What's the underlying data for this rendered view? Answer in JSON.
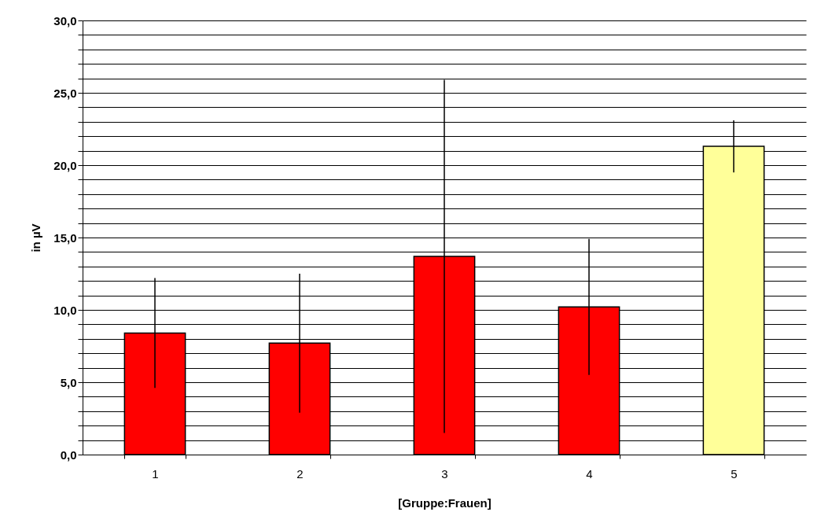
{
  "chart_data": {
    "type": "bar",
    "xlabel": "[Gruppe:Frauen]",
    "ylabel": "in µV",
    "categories": [
      "1",
      "2",
      "3",
      "4",
      "5"
    ],
    "values": [
      8.4,
      7.7,
      13.7,
      10.2,
      21.3
    ],
    "errors": [
      3.8,
      4.8,
      12.2,
      4.7,
      1.8
    ],
    "colors": [
      "#ff0000",
      "#ff0000",
      "#ff0000",
      "#ff0000",
      "#ffff99"
    ],
    "ylim": [
      0,
      30
    ],
    "yticks": [
      {
        "value": 0,
        "label": "0,0"
      },
      {
        "value": 1,
        "label": null
      },
      {
        "value": 2,
        "label": null
      },
      {
        "value": 3,
        "label": null
      },
      {
        "value": 4,
        "label": null
      },
      {
        "value": 5,
        "label": "5,0"
      },
      {
        "value": 6,
        "label": null
      },
      {
        "value": 7,
        "label": null
      },
      {
        "value": 8,
        "label": null
      },
      {
        "value": 9,
        "label": null
      },
      {
        "value": 10,
        "label": "10,0"
      },
      {
        "value": 11,
        "label": null
      },
      {
        "value": 12,
        "label": null
      },
      {
        "value": 13,
        "label": null
      },
      {
        "value": 14,
        "label": null
      },
      {
        "value": 15,
        "label": "15,0"
      },
      {
        "value": 16,
        "label": null
      },
      {
        "value": 17,
        "label": null
      },
      {
        "value": 18,
        "label": null
      },
      {
        "value": 19,
        "label": null
      },
      {
        "value": 20,
        "label": "20,0"
      },
      {
        "value": 21,
        "label": null
      },
      {
        "value": 22,
        "label": null
      },
      {
        "value": 23,
        "label": null
      },
      {
        "value": 24,
        "label": null
      },
      {
        "value": 25,
        "label": "25,0"
      },
      {
        "value": 26,
        "label": null
      },
      {
        "value": 27,
        "label": null
      },
      {
        "value": 28,
        "label": null
      },
      {
        "value": 29,
        "label": null
      },
      {
        "value": 30,
        "label": "30,0"
      }
    ],
    "grid": "y"
  }
}
